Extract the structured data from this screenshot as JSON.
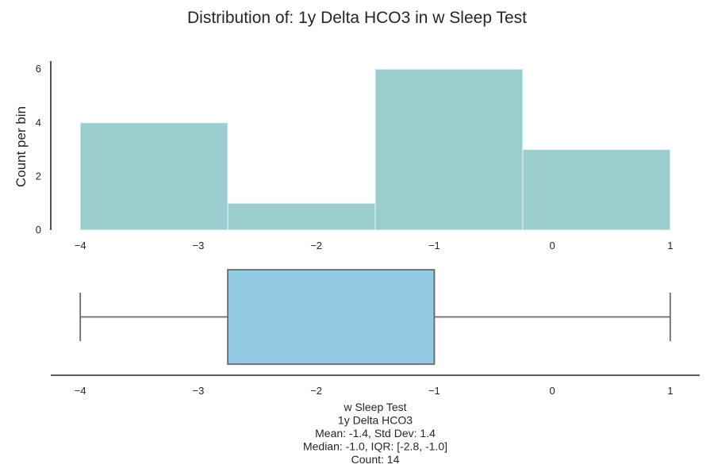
{
  "title": "Distribution of: 1y Delta HCO3 in w Sleep Test",
  "colors": {
    "hist_fill": "#9bcdcf",
    "hist_edge": "#e8f4f4",
    "box_fill": "#93cae4",
    "box_edge": "#6b6b6b",
    "axis": "#262626"
  },
  "chart_data": [
    {
      "type": "bar",
      "subtype": "histogram",
      "ylabel": "Count per bin",
      "xlim": [
        -4.25,
        1.25
      ],
      "ylim": [
        0,
        6.3
      ],
      "xticks": [
        -4,
        -3,
        -2,
        -1,
        0,
        1
      ],
      "xtick_labels": [
        "−4",
        "−3",
        "−2",
        "−1",
        "0",
        "1"
      ],
      "yticks": [
        0,
        2,
        4,
        6
      ],
      "ytick_labels": [
        "0",
        "2",
        "4",
        "6"
      ],
      "bins": [
        {
          "start": -4.0,
          "end": -2.75,
          "count": 4
        },
        {
          "start": -2.75,
          "end": -1.5,
          "count": 1
        },
        {
          "start": -1.5,
          "end": -0.25,
          "count": 6
        },
        {
          "start": -0.25,
          "end": 1.0,
          "count": 3
        }
      ],
      "grid": false
    },
    {
      "type": "boxplot",
      "xlim": [
        -4.25,
        1.25
      ],
      "xticks": [
        -4,
        -3,
        -2,
        -1,
        0,
        1
      ],
      "xtick_labels": [
        "−4",
        "−3",
        "−2",
        "−1",
        "0",
        "1"
      ],
      "whisker_low": -4.0,
      "q1": -2.75,
      "median": -1.0,
      "q3": -1.0,
      "whisker_high": 1.0,
      "stats_lines": [
        "w Sleep Test",
        "1y Delta HCO3",
        "Mean: -1.4, Std Dev: 1.4",
        "Median: -1.0, IQR: [-2.8, -1.0]",
        "Count: 14"
      ]
    }
  ]
}
